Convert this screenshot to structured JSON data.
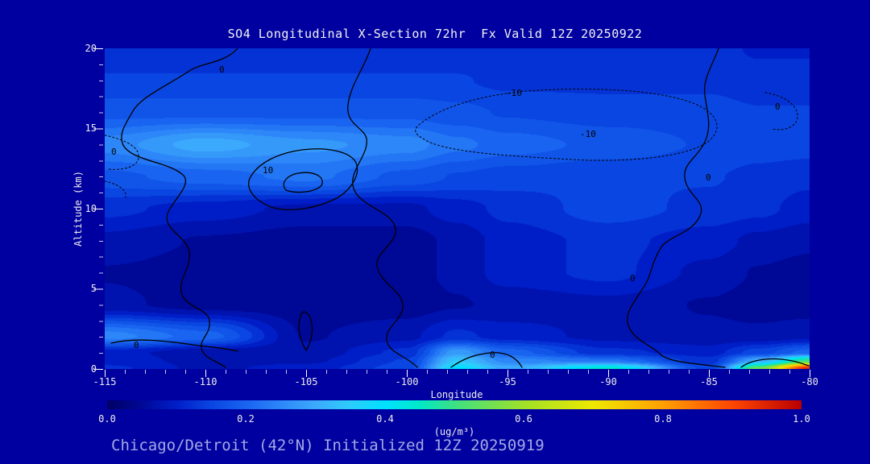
{
  "title": "SO4 Longitudinal X-Section 72hr  Fx Valid 12Z 20250922",
  "caption": "Chicago/Detroit (42°N) Initialized 12Z 20250919",
  "axes": {
    "x_label": "Longitude",
    "y_label": "Altitude (km)",
    "x_ticks": [
      "-115",
      "-110",
      "-105",
      "-100",
      "-95",
      "-90",
      "-85",
      "-80"
    ],
    "y_ticks": [
      "0",
      "5",
      "10",
      "15",
      "20"
    ]
  },
  "colorbar": {
    "ticks": [
      "0.0",
      "0.2",
      "0.4",
      "0.6",
      "0.8",
      "1.0"
    ],
    "unit": "(ug/m³)"
  },
  "colors": {
    "background": "#0000A0",
    "title_text": "#F2F2F2",
    "caption_text": "#A2A9E4",
    "tick_text": "#ECECEC",
    "contour_line": "#000000"
  },
  "chart_data": {
    "type": "heatmap",
    "field": "SO4 concentration cross-section",
    "units": "ug/m3",
    "title": "SO4 Longitudinal X-Section 72hr  Fx Valid 12Z 20250922",
    "xlabel": "Longitude",
    "ylabel": "Altitude (km)",
    "xlim": [
      -115,
      -80
    ],
    "ylim": [
      0,
      20
    ],
    "clim": [
      0,
      1
    ],
    "legend_position": "bottom colorbar",
    "grid": false,
    "lons": [
      -115,
      -110,
      -105,
      -100,
      -97.5,
      -95,
      -90,
      -85,
      -82.5,
      -80
    ],
    "altitudes_km": [
      0,
      0.5,
      1,
      2,
      4,
      6,
      8,
      10,
      12,
      14,
      16,
      18,
      20
    ],
    "values": [
      [
        0.12,
        0.08,
        0.1,
        0.15,
        0.4,
        0.3,
        0.45,
        0.15,
        0.55,
        0.95
      ],
      [
        0.1,
        0.08,
        0.08,
        0.14,
        0.34,
        0.25,
        0.22,
        0.12,
        0.3,
        0.5
      ],
      [
        0.1,
        0.07,
        0.07,
        0.12,
        0.28,
        0.2,
        0.12,
        0.1,
        0.15,
        0.2
      ],
      [
        0.25,
        0.2,
        0.06,
        0.08,
        0.12,
        0.1,
        0.08,
        0.07,
        0.07,
        0.08
      ],
      [
        0.07,
        0.05,
        0.05,
        0.05,
        0.06,
        0.07,
        0.08,
        0.06,
        0.05,
        0.05
      ],
      [
        0.06,
        0.05,
        0.04,
        0.05,
        0.07,
        0.1,
        0.12,
        0.08,
        0.06,
        0.05
      ],
      [
        0.08,
        0.06,
        0.05,
        0.05,
        0.07,
        0.1,
        0.12,
        0.1,
        0.08,
        0.07
      ],
      [
        0.12,
        0.1,
        0.08,
        0.08,
        0.1,
        0.12,
        0.15,
        0.13,
        0.12,
        0.1
      ],
      [
        0.18,
        0.2,
        0.22,
        0.18,
        0.16,
        0.15,
        0.14,
        0.14,
        0.13,
        0.12
      ],
      [
        0.25,
        0.3,
        0.27,
        0.25,
        0.22,
        0.2,
        0.18,
        0.16,
        0.15,
        0.15
      ],
      [
        0.18,
        0.18,
        0.18,
        0.18,
        0.17,
        0.16,
        0.15,
        0.15,
        0.14,
        0.14
      ],
      [
        0.14,
        0.14,
        0.14,
        0.14,
        0.14,
        0.13,
        0.13,
        0.13,
        0.12,
        0.12
      ],
      [
        0.12,
        0.12,
        0.12,
        0.12,
        0.12,
        0.12,
        0.12,
        0.12,
        0.11,
        0.11
      ]
    ],
    "colormap_stops": [
      [
        0.0,
        0,
        0,
        100
      ],
      [
        0.05,
        0,
        8,
        150
      ],
      [
        0.1,
        0,
        30,
        200
      ],
      [
        0.15,
        10,
        70,
        225
      ],
      [
        0.2,
        25,
        100,
        240
      ],
      [
        0.25,
        45,
        135,
        248
      ],
      [
        0.3,
        60,
        170,
        252
      ],
      [
        0.35,
        45,
        205,
        252
      ],
      [
        0.4,
        0,
        225,
        255
      ],
      [
        0.45,
        0,
        232,
        200
      ],
      [
        0.5,
        60,
        225,
        130
      ],
      [
        0.6,
        160,
        225,
        40
      ],
      [
        0.7,
        238,
        232,
        0
      ],
      [
        0.8,
        255,
        160,
        0
      ],
      [
        0.9,
        255,
        70,
        0
      ],
      [
        1.0,
        185,
        0,
        0
      ]
    ],
    "contour_overlay_labels": [
      "0",
      "10",
      "-10",
      "-10",
      "0",
      "0",
      "0",
      "0",
      "0",
      "0"
    ]
  }
}
